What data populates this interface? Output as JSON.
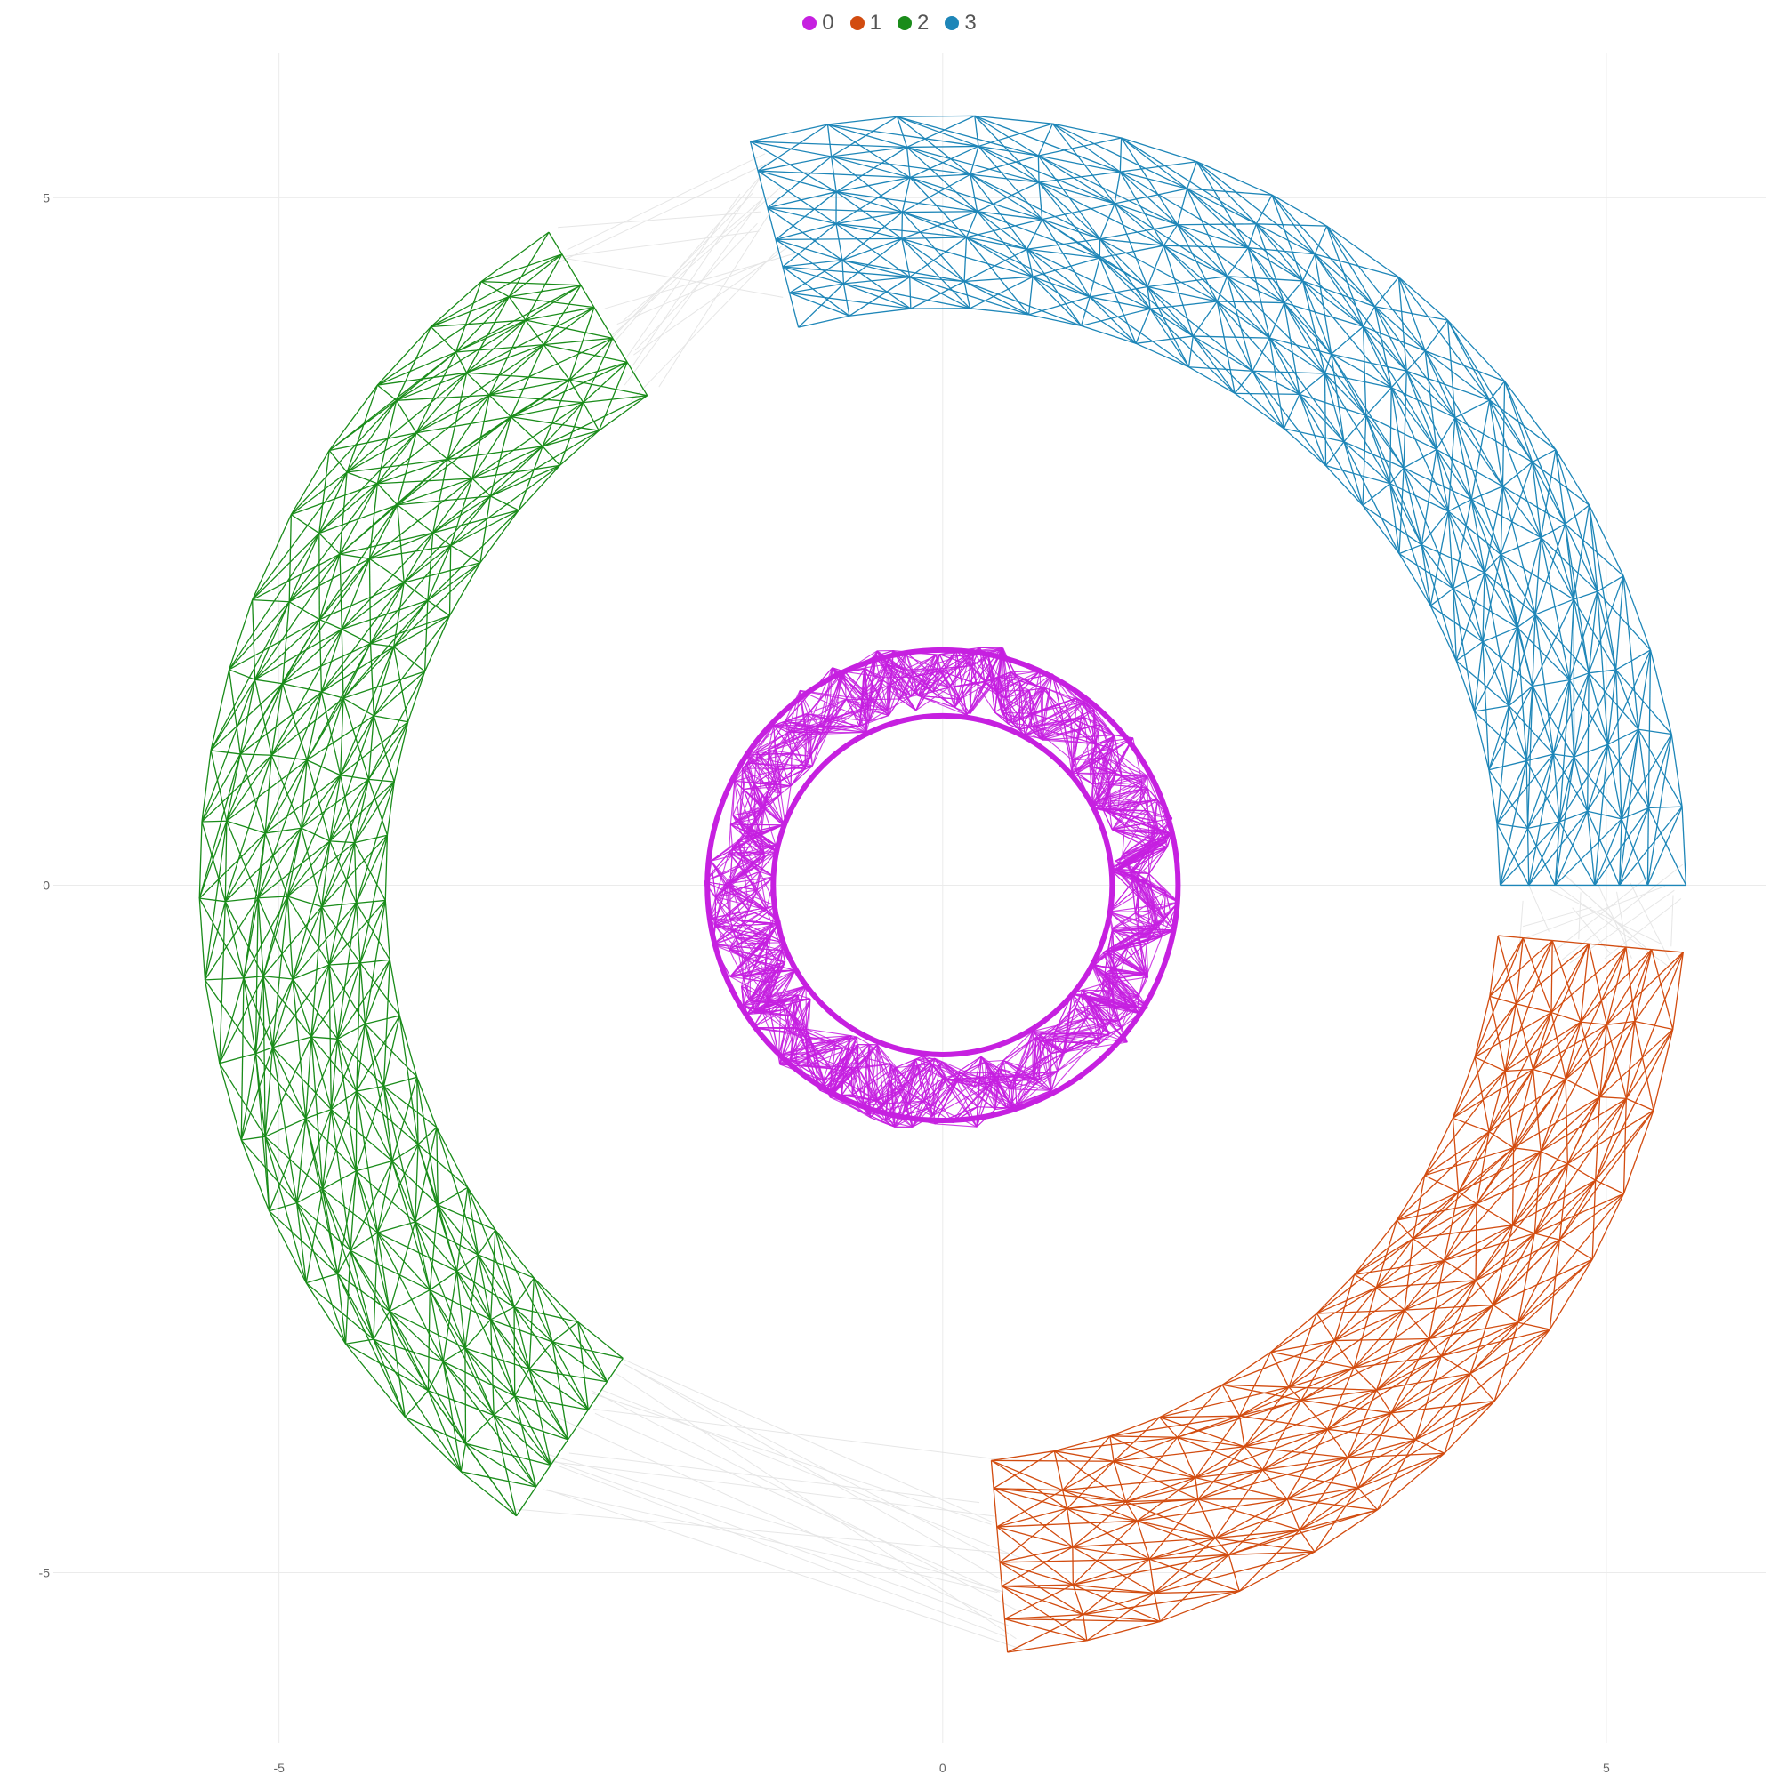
{
  "chart_data": {
    "type": "network",
    "title": "",
    "xlabel": "",
    "ylabel": "",
    "xlim": [
      -6.7,
      6.2
    ],
    "ylim": [
      -6.4,
      6.05
    ],
    "x_ticks": [
      {
        "value": -5,
        "label": "-5"
      },
      {
        "value": 0,
        "label": "0"
      },
      {
        "value": 5,
        "label": "5"
      }
    ],
    "y_ticks": [
      {
        "value": 5,
        "label": "5"
      },
      {
        "value": 0,
        "label": "0"
      },
      {
        "value": -5,
        "label": "-5"
      }
    ],
    "grid": true,
    "legend_position": "top-center",
    "series": [
      {
        "name": "0",
        "color": "#C620E0",
        "inner_radius": 1.25,
        "outer_radius": 1.8,
        "angle_start": 0,
        "angle_end": 360,
        "style": "dense"
      },
      {
        "name": "1",
        "color": "#D24C10",
        "inner_radius": 4.2,
        "outer_radius": 5.6,
        "angle_start": -85,
        "angle_end": -5,
        "style": "mesh"
      },
      {
        "name": "2",
        "color": "#1A8C1A",
        "inner_radius": 4.2,
        "outer_radius": 5.6,
        "angle_start": 122,
        "angle_end": 235,
        "style": "mesh"
      },
      {
        "name": "3",
        "color": "#1E86B8",
        "inner_radius": 4.2,
        "outer_radius": 5.6,
        "angle_start": 0,
        "angle_end": 105,
        "style": "mesh"
      }
    ]
  }
}
